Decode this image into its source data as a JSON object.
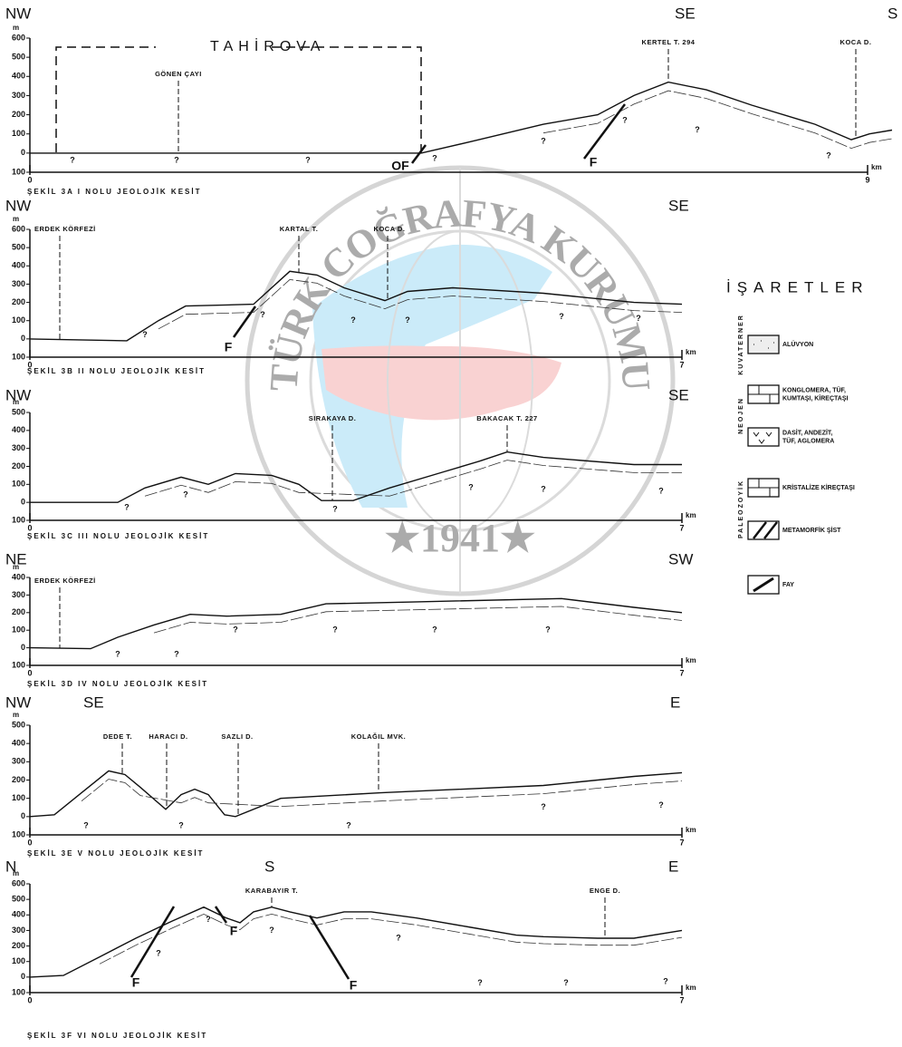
{
  "sections": [
    {
      "directions": [
        "NW",
        "SE",
        "S"
      ],
      "y_unit": "m",
      "ylim": [
        -100,
        600
      ],
      "yticks": [
        600,
        500,
        400,
        300,
        200,
        100,
        0,
        {
          "value": -100,
          "label": "100"
        }
      ],
      "x_unit": "km",
      "xlim": [
        0,
        9
      ],
      "xticks": [
        0,
        9
      ],
      "places": [
        "TAHİROVA",
        "GÖNEN ÇAYI",
        "KERTEL T. 294",
        "KOCA D."
      ],
      "faults": [
        "OF",
        "F"
      ],
      "unknowns": [
        "?",
        "?",
        "?",
        "?",
        "?",
        "?",
        "?",
        "?"
      ],
      "caption": "ŞEKİL 3A I NOLU JEOLOJİK KESİT"
    },
    {
      "directions": [
        "NW",
        "SE"
      ],
      "y_unit": "m",
      "ylim": [
        -100,
        600
      ],
      "yticks": [
        600,
        500,
        400,
        300,
        200,
        100,
        0,
        {
          "value": -100,
          "label": "100"
        }
      ],
      "x_unit": "km",
      "xlim": [
        0,
        7
      ],
      "xticks": [
        0,
        7
      ],
      "places": [
        "ERDEK KÖRFEZİ",
        "KARTAL T.",
        "KOCA D."
      ],
      "faults": [
        "F"
      ],
      "unknowns": [
        "?",
        "?",
        "?",
        "?",
        "?",
        "?"
      ],
      "caption": "ŞEKİL 3B II NOLU JEOLOJİK KESİT"
    },
    {
      "directions": [
        "NW",
        "SE"
      ],
      "y_unit": "m",
      "ylim": [
        -100,
        500
      ],
      "yticks": [
        500,
        400,
        300,
        200,
        100,
        0,
        {
          "value": -100,
          "label": "100"
        }
      ],
      "x_unit": "km",
      "xlim": [
        0,
        7
      ],
      "xticks": [
        0,
        7
      ],
      "places": [
        "SIRAKAYA D.",
        "BAKACAK T. 227"
      ],
      "faults": [],
      "unknowns": [
        "?",
        "?",
        "?",
        "?",
        "?",
        "?"
      ],
      "caption": "ŞEKİL 3C III NOLU JEOLOJİK KESİT"
    },
    {
      "directions": [
        "NE",
        "SW"
      ],
      "y_unit": "m",
      "ylim": [
        -100,
        400
      ],
      "yticks": [
        400,
        300,
        200,
        100,
        0,
        {
          "value": -100,
          "label": "100"
        }
      ],
      "x_unit": "km",
      "xlim": [
        0,
        7
      ],
      "xticks": [
        0,
        7
      ],
      "places": [
        "ERDEK KÖRFEZİ"
      ],
      "faults": [],
      "unknowns": [
        "?",
        "?",
        "?",
        "?",
        "?",
        "?"
      ],
      "caption": "ŞEKİL 3D IV NOLU JEOLOJİK KESİT"
    },
    {
      "directions": [
        "NW",
        "SE",
        "E"
      ],
      "y_unit": "m",
      "ylim": [
        -100,
        500
      ],
      "yticks": [
        500,
        400,
        300,
        200,
        100,
        0,
        {
          "value": -100,
          "label": "100"
        }
      ],
      "x_unit": "km",
      "xlim": [
        0,
        7
      ],
      "xticks": [
        0,
        7
      ],
      "places": [
        "DEDE T.",
        "HARACI D.",
        "SAZLI D.",
        "KOLAĞIL MVK."
      ],
      "faults": [],
      "unknowns": [
        "?",
        "?",
        "?",
        "?",
        "?"
      ],
      "caption": "ŞEKİL 3E V NOLU JEOLOJİK KESİT"
    },
    {
      "directions": [
        "N",
        "S",
        "E"
      ],
      "y_unit": "m",
      "ylim": [
        -100,
        600
      ],
      "yticks": [
        600,
        500,
        400,
        300,
        200,
        100,
        0,
        {
          "value": -100,
          "label": "100"
        }
      ],
      "x_unit": "km",
      "xlim": [
        0,
        7
      ],
      "xticks": [
        0,
        7
      ],
      "places": [
        "KARABAYIR T.",
        "ENGE D."
      ],
      "faults": [
        "F",
        "F",
        "F"
      ],
      "unknowns": [
        "?",
        "?",
        "?",
        "?",
        "?",
        "?",
        "?"
      ],
      "caption": "ŞEKİL 3F VI NOLU JEOLOJİK KESİT"
    }
  ],
  "legend": {
    "title": "İŞARETLER",
    "groups": [
      {
        "era": "KUVATERNER",
        "items": [
          [
            "ALÜVYON"
          ]
        ]
      },
      {
        "era": "NEOJEN",
        "items": [
          [
            "KONGLOMERA, TÜF,",
            "KUMTAŞI, KİREÇTAŞI"
          ],
          [
            "DASİT, ANDEZİT,",
            "TÜF, AGLOMERA"
          ]
        ]
      },
      {
        "era": "PALEOZOYİK",
        "items": [
          [
            "KRİSTALİZE KİREÇTAŞI"
          ],
          [
            "METAMORFİK ŞİST"
          ]
        ]
      }
    ],
    "other": [
      "FAY"
    ]
  },
  "watermark": {
    "text": "TÜRK COĞRAFYA KURUMU",
    "year": "★1941★"
  }
}
